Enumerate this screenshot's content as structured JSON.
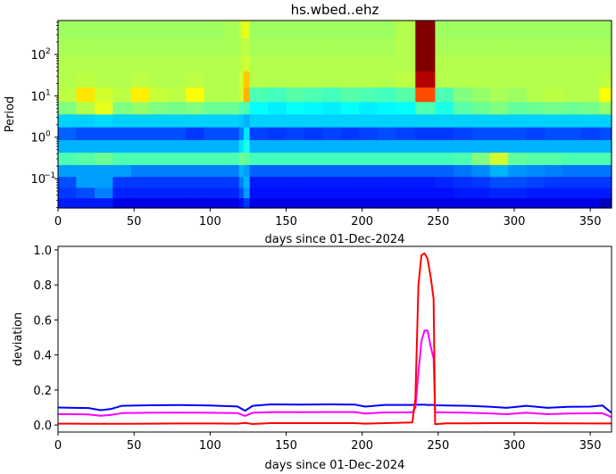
{
  "chart_data": [
    {
      "type": "heatmap",
      "title": "hs.wbed..ehz",
      "xlabel": "days since 01-Dec-2024",
      "ylabel": "Period",
      "xlim": [
        0,
        364
      ],
      "ylim": [
        0.0195,
        660
      ],
      "yscale": "log",
      "colormap": "jet",
      "grid": false,
      "x_ticks": [
        "0",
        "50",
        "100",
        "150",
        "200",
        "250",
        "300",
        "350"
      ],
      "y_ticks": [
        {
          "value": 0.1,
          "base": "10",
          "exp": "−1"
        },
        {
          "value": 1,
          "base": "10",
          "exp": "0"
        },
        {
          "value": 10,
          "base": "10",
          "exp": "1"
        },
        {
          "value": 100,
          "base": "10",
          "exp": "2"
        }
      ],
      "x_edges": [
        0,
        12,
        24,
        36,
        48,
        60,
        72,
        84,
        96,
        108,
        119,
        122,
        126,
        138,
        150,
        162,
        174,
        186,
        198,
        210,
        222,
        235,
        248,
        260,
        272,
        284,
        296,
        308,
        320,
        332,
        344,
        356,
        364
      ],
      "periods": [
        400,
        150,
        60,
        25,
        10,
        5,
        2.5,
        1.2,
        0.6,
        0.3,
        0.15,
        0.08,
        0.045,
        0.025
      ],
      "z": [
        [
          0.53,
          0.53,
          0.53,
          0.53,
          0.53,
          0.53,
          0.53,
          0.53,
          0.53,
          0.54,
          0.58,
          0.6,
          0.53,
          0.53,
          0.53,
          0.53,
          0.53,
          0.53,
          0.53,
          0.53,
          0.55,
          1.0,
          0.53,
          0.53,
          0.53,
          0.53,
          0.53,
          0.53,
          0.53,
          0.53,
          0.53,
          0.53
        ],
        [
          0.54,
          0.54,
          0.54,
          0.54,
          0.54,
          0.54,
          0.54,
          0.54,
          0.54,
          0.54,
          0.55,
          0.56,
          0.54,
          0.54,
          0.54,
          0.54,
          0.54,
          0.54,
          0.54,
          0.54,
          0.55,
          1.0,
          0.54,
          0.54,
          0.54,
          0.54,
          0.54,
          0.54,
          0.54,
          0.54,
          0.54,
          0.54
        ],
        [
          0.55,
          0.55,
          0.55,
          0.55,
          0.55,
          0.55,
          0.55,
          0.55,
          0.55,
          0.55,
          0.56,
          0.58,
          0.55,
          0.55,
          0.55,
          0.55,
          0.55,
          0.55,
          0.55,
          0.55,
          0.55,
          1.0,
          0.55,
          0.55,
          0.55,
          0.55,
          0.55,
          0.55,
          0.55,
          0.55,
          0.55,
          0.55
        ],
        [
          0.55,
          0.56,
          0.55,
          0.55,
          0.56,
          0.55,
          0.55,
          0.56,
          0.55,
          0.55,
          0.58,
          0.68,
          0.55,
          0.55,
          0.55,
          0.55,
          0.55,
          0.55,
          0.55,
          0.55,
          0.56,
          0.95,
          0.55,
          0.55,
          0.55,
          0.55,
          0.55,
          0.55,
          0.55,
          0.55,
          0.55,
          0.56
        ],
        [
          0.56,
          0.65,
          0.58,
          0.56,
          0.64,
          0.57,
          0.56,
          0.62,
          0.55,
          0.55,
          0.58,
          0.7,
          0.45,
          0.44,
          0.46,
          0.45,
          0.44,
          0.46,
          0.45,
          0.44,
          0.46,
          0.8,
          0.45,
          0.5,
          0.52,
          0.54,
          0.53,
          0.55,
          0.56,
          0.55,
          0.55,
          0.62
        ],
        [
          0.5,
          0.55,
          0.6,
          0.5,
          0.52,
          0.5,
          0.49,
          0.5,
          0.48,
          0.48,
          0.45,
          0.45,
          0.38,
          0.36,
          0.38,
          0.37,
          0.36,
          0.38,
          0.36,
          0.37,
          0.38,
          0.45,
          0.4,
          0.46,
          0.48,
          0.5,
          0.47,
          0.48,
          0.49,
          0.48,
          0.49,
          0.52
        ],
        [
          0.33,
          0.33,
          0.34,
          0.33,
          0.33,
          0.33,
          0.33,
          0.33,
          0.33,
          0.33,
          0.32,
          0.3,
          0.33,
          0.33,
          0.33,
          0.33,
          0.33,
          0.33,
          0.33,
          0.33,
          0.33,
          0.33,
          0.33,
          0.33,
          0.33,
          0.33,
          0.33,
          0.33,
          0.33,
          0.33,
          0.33,
          0.33
        ],
        [
          0.22,
          0.2,
          0.2,
          0.2,
          0.2,
          0.2,
          0.2,
          0.18,
          0.2,
          0.2,
          0.25,
          0.35,
          0.19,
          0.18,
          0.19,
          0.18,
          0.19,
          0.18,
          0.19,
          0.2,
          0.19,
          0.18,
          0.18,
          0.19,
          0.2,
          0.2,
          0.2,
          0.19,
          0.2,
          0.2,
          0.19,
          0.2
        ],
        [
          0.3,
          0.3,
          0.3,
          0.3,
          0.3,
          0.3,
          0.3,
          0.3,
          0.3,
          0.3,
          0.35,
          0.4,
          0.3,
          0.3,
          0.3,
          0.3,
          0.3,
          0.3,
          0.3,
          0.3,
          0.3,
          0.3,
          0.3,
          0.3,
          0.3,
          0.3,
          0.3,
          0.3,
          0.3,
          0.3,
          0.3,
          0.3
        ],
        [
          0.45,
          0.46,
          0.48,
          0.45,
          0.45,
          0.45,
          0.45,
          0.45,
          0.45,
          0.45,
          0.48,
          0.47,
          0.44,
          0.44,
          0.44,
          0.44,
          0.44,
          0.44,
          0.44,
          0.44,
          0.44,
          0.44,
          0.44,
          0.45,
          0.5,
          0.58,
          0.47,
          0.46,
          0.46,
          0.45,
          0.45,
          0.45
        ],
        [
          0.28,
          0.28,
          0.28,
          0.28,
          0.25,
          0.25,
          0.25,
          0.25,
          0.25,
          0.25,
          0.3,
          0.28,
          0.22,
          0.22,
          0.22,
          0.22,
          0.22,
          0.22,
          0.22,
          0.22,
          0.22,
          0.22,
          0.22,
          0.24,
          0.26,
          0.3,
          0.27,
          0.26,
          0.25,
          0.24,
          0.24,
          0.24
        ],
        [
          0.2,
          0.28,
          0.28,
          0.18,
          0.18,
          0.18,
          0.18,
          0.18,
          0.18,
          0.18,
          0.25,
          0.3,
          0.15,
          0.15,
          0.15,
          0.15,
          0.15,
          0.15,
          0.15,
          0.15,
          0.15,
          0.15,
          0.16,
          0.17,
          0.18,
          0.2,
          0.2,
          0.19,
          0.18,
          0.18,
          0.18,
          0.18
        ],
        [
          0.18,
          0.2,
          0.25,
          0.16,
          0.16,
          0.16,
          0.16,
          0.16,
          0.16,
          0.16,
          0.2,
          0.28,
          0.14,
          0.14,
          0.14,
          0.14,
          0.14,
          0.14,
          0.14,
          0.14,
          0.14,
          0.14,
          0.14,
          0.15,
          0.15,
          0.16,
          0.16,
          0.15,
          0.15,
          0.15,
          0.15,
          0.15
        ],
        [
          0.15,
          0.15,
          0.15,
          0.1,
          0.1,
          0.1,
          0.1,
          0.1,
          0.1,
          0.1,
          0.14,
          0.18,
          0.1,
          0.1,
          0.1,
          0.1,
          0.1,
          0.1,
          0.1,
          0.1,
          0.1,
          0.1,
          0.1,
          0.1,
          0.1,
          0.1,
          0.1,
          0.1,
          0.1,
          0.1,
          0.1,
          0.06
        ]
      ]
    },
    {
      "type": "line",
      "title": "",
      "xlabel": "days since 01-Dec-2024",
      "ylabel": "deviation",
      "xlim": [
        0,
        364
      ],
      "ylim": [
        -0.04,
        1.02
      ],
      "grid": false,
      "x_ticks": [
        "0",
        "50",
        "100",
        "150",
        "200",
        "250",
        "300",
        "350"
      ],
      "y_ticks": [
        "0.0",
        "0.2",
        "0.4",
        "0.6",
        "0.8",
        "1.0"
      ],
      "x": [
        0,
        10,
        20,
        28,
        35,
        42,
        60,
        80,
        100,
        118,
        123,
        128,
        140,
        160,
        180,
        195,
        202,
        215,
        233,
        235,
        237,
        239,
        241,
        243,
        245,
        247,
        248,
        255,
        270,
        285,
        295,
        308,
        322,
        335,
        350,
        358,
        364
      ],
      "series": [
        {
          "color": "#0000ff",
          "values": [
            0.1,
            0.098,
            0.097,
            0.085,
            0.092,
            0.11,
            0.113,
            0.114,
            0.112,
            0.106,
            0.082,
            0.11,
            0.118,
            0.117,
            0.118,
            0.117,
            0.105,
            0.115,
            0.115,
            0.116,
            0.116,
            0.116,
            0.116,
            0.115,
            0.115,
            0.115,
            0.113,
            0.112,
            0.11,
            0.104,
            0.098,
            0.11,
            0.098,
            0.104,
            0.105,
            0.112,
            0.07
          ]
        },
        {
          "color": "#ff00ff",
          "values": [
            0.062,
            0.062,
            0.061,
            0.053,
            0.058,
            0.068,
            0.07,
            0.071,
            0.07,
            0.068,
            0.052,
            0.07,
            0.074,
            0.073,
            0.074,
            0.074,
            0.066,
            0.072,
            0.072,
            0.1,
            0.3,
            0.48,
            0.54,
            0.54,
            0.45,
            0.38,
            0.072,
            0.072,
            0.07,
            0.066,
            0.062,
            0.07,
            0.062,
            0.066,
            0.067,
            0.068,
            0.045
          ]
        },
        {
          "color": "#ff0000",
          "values": [
            0.008,
            0.008,
            0.007,
            0.007,
            0.007,
            0.007,
            0.008,
            0.009,
            0.009,
            0.008,
            0.012,
            0.006,
            0.011,
            0.011,
            0.011,
            0.011,
            0.008,
            0.011,
            0.015,
            0.15,
            0.8,
            0.97,
            0.98,
            0.95,
            0.85,
            0.72,
            0.005,
            0.01,
            0.01,
            0.011,
            0.011,
            0.011,
            0.01,
            0.01,
            0.009,
            0.009,
            0.009
          ]
        }
      ]
    }
  ]
}
